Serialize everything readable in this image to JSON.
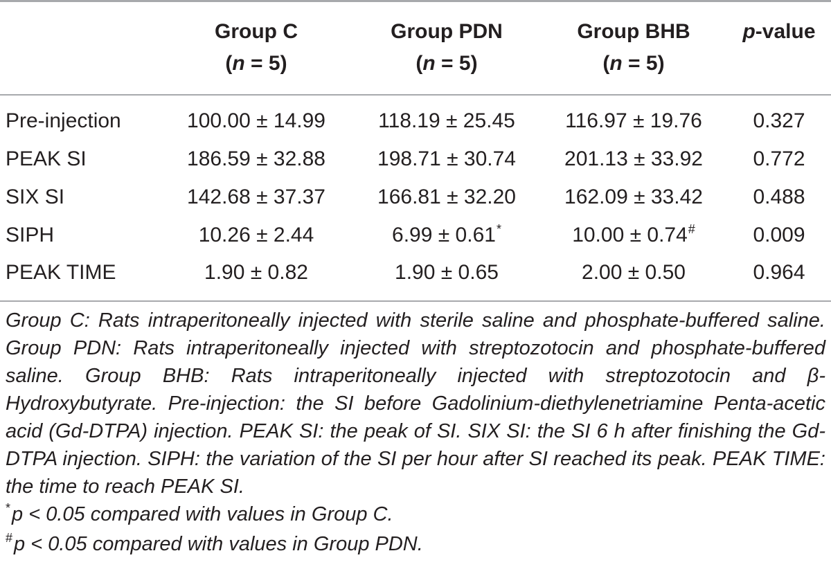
{
  "table": {
    "headers": [
      {
        "line1": "Group C",
        "line2_pre": "(",
        "line2_var": "n",
        "line2_post": " = 5)"
      },
      {
        "line1": "Group PDN",
        "line2_pre": "(",
        "line2_var": "n",
        "line2_post": " = 5)"
      },
      {
        "line1": "Group BHB",
        "line2_pre": "(",
        "line2_var": "n",
        "line2_post": " = 5)"
      },
      {
        "line1_var": "p",
        "line1_post": "-value"
      }
    ],
    "rows": [
      {
        "label": "Pre-injection",
        "c": "100.00 ± 14.99",
        "pdn": "118.19 ± 25.45",
        "bhb": "116.97 ± 19.76",
        "p": "0.327",
        "pdn_mark": "",
        "bhb_mark": ""
      },
      {
        "label": "PEAK SI",
        "c": "186.59 ± 32.88",
        "pdn": "198.71 ± 30.74",
        "bhb": "201.13 ± 33.92",
        "p": "0.772",
        "pdn_mark": "",
        "bhb_mark": ""
      },
      {
        "label": "SIX SI",
        "c": "142.68 ± 37.37",
        "pdn": "166.81 ± 32.20",
        "bhb": "162.09 ± 33.42",
        "p": "0.488",
        "pdn_mark": "",
        "bhb_mark": ""
      },
      {
        "label": "SIPH",
        "c": "10.26 ± 2.44",
        "pdn": "6.99 ± 0.61",
        "bhb": "10.00 ± 0.74",
        "p": "0.009",
        "pdn_mark": "*",
        "bhb_mark": "#"
      },
      {
        "label": "PEAK TIME",
        "c": "1.90 ± 0.82",
        "pdn": "1.90 ± 0.65",
        "bhb": "2.00 ± 0.50",
        "p": "0.964",
        "pdn_mark": "",
        "bhb_mark": ""
      }
    ]
  },
  "notes": {
    "definitions": "Group C: Rats intraperitoneally injected with sterile saline and phosphate-buffered saline. Group PDN: Rats intraperitoneally injected with streptozotocin and phosphate-buffered saline. Group BHB: Rats intraperitoneally injected with streptozotocin and β-Hydroxybutyrate. Pre-injection: the SI before Gadolinium-diethylenetriamine Penta-acetic acid (Gd-DTPA) injection. PEAK SI: the peak of SI. SIX SI: the SI 6 h after finishing the Gd-DTPA injection. SIPH: the variation of the SI per hour after SI reached its peak. PEAK TIME: the time to reach PEAK SI.",
    "footnote1_mark": "*",
    "footnote1_text": "p < 0.05 compared with values in Group C.",
    "footnote2_mark": "#",
    "footnote2_text": "p < 0.05 compared with values in Group PDN."
  }
}
